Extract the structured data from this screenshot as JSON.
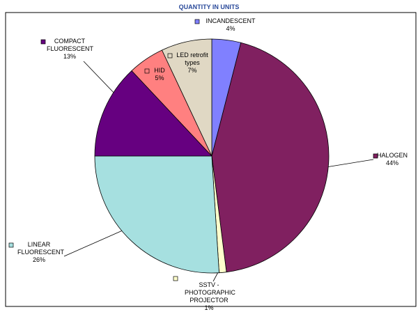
{
  "chart_data": {
    "type": "pie",
    "title": "QUANTITY IN UNITS",
    "categories": [
      "INCANDESCENT",
      "HALOGEN",
      "SSTV - PHOTOGRAPHIC PROJECTOR",
      "LINEAR FLUORESCENT",
      "COMPACT FLUORESCENT",
      "HID",
      "LED retrofit types"
    ],
    "values": [
      4,
      44,
      1,
      26,
      13,
      5,
      7
    ],
    "value_labels": [
      "4%",
      "44%",
      "1%",
      "26%",
      "13%",
      "5%",
      "7%"
    ],
    "colors": [
      "#8080ff",
      "#802060",
      "#ffffcc",
      "#a6e0e0",
      "#660080",
      "#ff8080",
      "#e0d8c4"
    ]
  }
}
